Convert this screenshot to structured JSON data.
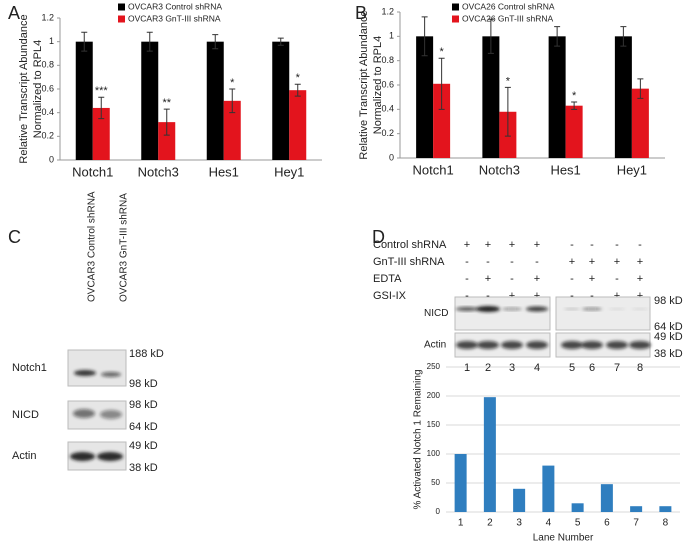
{
  "chart_data": [
    {
      "type": "bar",
      "panel": "A",
      "categories": [
        "Notch1",
        "Notch3",
        "Hes1",
        "Hey1"
      ],
      "series": [
        {
          "name": "OVCAR3 Control shRNA",
          "color": "#000000",
          "values": [
            1,
            1,
            1,
            1
          ],
          "errors": [
            0.08,
            0.08,
            0.06,
            0.03
          ]
        },
        {
          "name": "OVCAR3 GnT-III shRNA",
          "color": "#e3141d",
          "values": [
            0.44,
            0.32,
            0.5,
            0.59
          ],
          "errors": [
            0.09,
            0.11,
            0.1,
            0.05
          ],
          "significance": [
            "***",
            "**",
            "*",
            "*"
          ]
        }
      ],
      "ylabel": [
        "Relative Transcript Abundance",
        "Normalized to RPL4"
      ],
      "ylim": [
        0,
        1.2
      ],
      "yticks": [
        0,
        0.2,
        0.4,
        0.6,
        0.8,
        1,
        1.2
      ],
      "grid": false
    },
    {
      "type": "bar",
      "panel": "B",
      "categories": [
        "Notch1",
        "Notch3",
        "Hes1",
        "Hey1"
      ],
      "series": [
        {
          "name": "OVCA26 Control shRNA",
          "color": "#000000",
          "values": [
            1,
            1,
            1,
            1
          ],
          "errors": [
            0.16,
            0.14,
            0.08,
            0.08
          ]
        },
        {
          "name": "OVCA26 GnT-III shRNA",
          "color": "#e3141d",
          "values": [
            0.61,
            0.38,
            0.43,
            0.57
          ],
          "errors": [
            0.21,
            0.2,
            0.03,
            0.08
          ],
          "significance": [
            "*",
            "*",
            "*",
            null
          ]
        }
      ],
      "ylabel": [
        "Relative Transcript Abundance",
        "Normalized to RPL4"
      ],
      "ylim": [
        0,
        1.2
      ],
      "yticks": [
        0,
        0.2,
        0.4,
        0.6,
        0.8,
        1,
        1.2
      ],
      "grid": false
    },
    {
      "type": "bar",
      "categories": [
        "1",
        "2",
        "3",
        "4",
        "5",
        "6",
        "7",
        "8"
      ],
      "series": [
        {
          "color": "#2f7ebf",
          "values": [
            100,
            198,
            40,
            80,
            15,
            48,
            10,
            10
          ]
        }
      ],
      "xlabel": "Lane Number",
      "ylabel": [
        "% Activated Notch 1 Remaining"
      ],
      "ylim": [
        0,
        250
      ],
      "yticks": [
        0,
        50,
        100,
        150,
        200,
        250
      ],
      "grid": true
    }
  ],
  "blots": {
    "C": {
      "panel": "C",
      "lanes": [
        "OVCAR3 Control shRNA",
        "OVCAR3 GnT-III shRNA"
      ],
      "rows": [
        {
          "label": "Notch1",
          "markers": [
            "188 kD",
            "98 kD"
          ]
        },
        {
          "label": "NICD",
          "markers": [
            "98 kD",
            "64 kD"
          ]
        },
        {
          "label": "Actin",
          "markers": [
            "49 kD",
            "38 kD"
          ]
        }
      ]
    },
    "D": {
      "panel": "D",
      "conditions": [
        {
          "label": "Control shRNA",
          "signs": [
            "+",
            "+",
            "+",
            "+",
            "-",
            "-",
            "-",
            "-"
          ]
        },
        {
          "label": "GnT-III shRNA",
          "signs": [
            "-",
            "-",
            "-",
            "-",
            "+",
            "+",
            "+",
            "+"
          ]
        },
        {
          "label": "EDTA",
          "signs": [
            "-",
            "+",
            "-",
            "+",
            "-",
            "+",
            "-",
            "+"
          ]
        },
        {
          "label": "GSI-IX",
          "signs": [
            "-",
            "-",
            "+",
            "+",
            "-",
            "-",
            "+",
            "+"
          ]
        }
      ],
      "rows": [
        {
          "label": "NICD",
          "markers": [
            "98 kD",
            "64 kD"
          ]
        },
        {
          "label": "Actin",
          "markers": [
            "49 kD",
            "38 kD"
          ]
        }
      ],
      "lanes": [
        "1",
        "2",
        "3",
        "4",
        "5",
        "6",
        "7",
        "8"
      ]
    }
  }
}
